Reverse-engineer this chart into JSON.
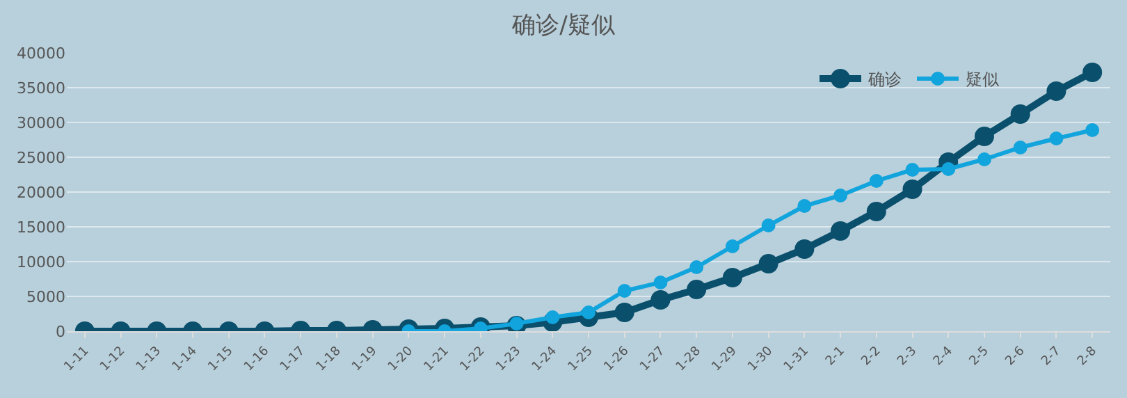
{
  "chart_data": {
    "type": "line",
    "title": "确诊/疑似",
    "categories": [
      "1-11",
      "1-12",
      "1-13",
      "1-14",
      "1-15",
      "1-16",
      "1-17",
      "1-18",
      "1-19",
      "1-20",
      "1-21",
      "1-22",
      "1-23",
      "1-24",
      "1-25",
      "1-26",
      "1-27",
      "1-28",
      "1-29",
      "1-30",
      "1-31",
      "2-1",
      "2-2",
      "2-3",
      "2-4",
      "2-5",
      "2-6",
      "2-7",
      "2-8"
    ],
    "series": [
      {
        "name": "确诊",
        "color": "#0a4f6c",
        "values": [
          0,
          0,
          0,
          0,
          0,
          0,
          100,
          100,
          200,
          300,
          400,
          600,
          800,
          1300,
          2000,
          2700,
          4500,
          6000,
          7700,
          9700,
          11800,
          14400,
          17200,
          20400,
          24300,
          28000,
          31200,
          34500,
          37200
        ]
      },
      {
        "name": "疑似",
        "color": "#12a4dc",
        "values": [
          null,
          null,
          null,
          null,
          null,
          null,
          null,
          null,
          null,
          0,
          0,
          400,
          1100,
          2000,
          2700,
          5800,
          7000,
          9200,
          12200,
          15200,
          18000,
          19500,
          21600,
          23200,
          23300,
          24700,
          26400,
          27700,
          28900
        ]
      }
    ],
    "ylim": [
      0,
      40000
    ],
    "yticks": [
      0,
      5000,
      10000,
      15000,
      20000,
      25000,
      30000,
      35000,
      40000
    ],
    "grid": "y",
    "legend": "top right",
    "marker": "circle",
    "line_style": "solid"
  }
}
